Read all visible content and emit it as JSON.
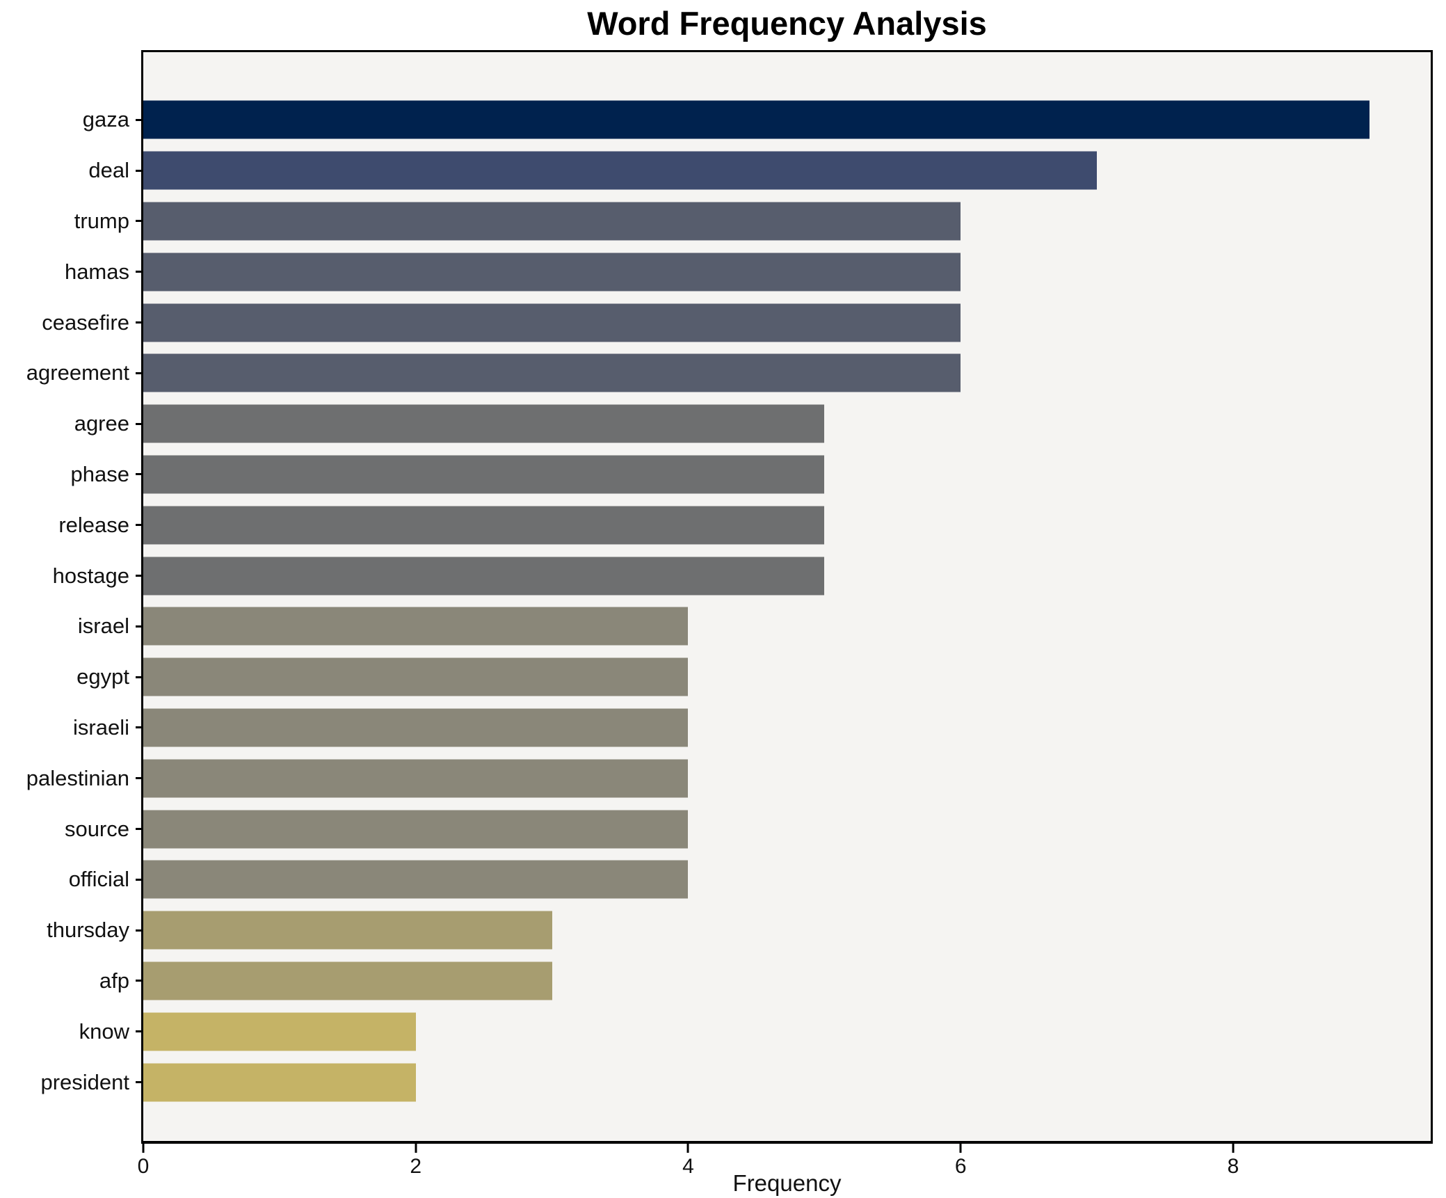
{
  "title": "Word Frequency Analysis",
  "chart_data": {
    "type": "bar",
    "orientation": "horizontal",
    "title": "Word Frequency Analysis",
    "xlabel": "Frequency",
    "ylabel": "",
    "categories": [
      "gaza",
      "deal",
      "trump",
      "hamas",
      "ceasefire",
      "agreement",
      "agree",
      "phase",
      "release",
      "hostage",
      "israel",
      "egypt",
      "israeli",
      "palestinian",
      "source",
      "official",
      "thursday",
      "afp",
      "know",
      "president"
    ],
    "values": [
      9,
      7,
      6,
      6,
      6,
      6,
      5,
      5,
      5,
      5,
      4,
      4,
      4,
      4,
      4,
      4,
      3,
      3,
      2,
      2
    ],
    "bar_colors": [
      "#00224e",
      "#3e4b6e",
      "#575d6d",
      "#575d6d",
      "#575d6d",
      "#575d6d",
      "#6e6f70",
      "#6e6f70",
      "#6e6f70",
      "#6e6f70",
      "#8a8779",
      "#8a8779",
      "#8a8779",
      "#8a8779",
      "#8a8779",
      "#8a8779",
      "#a79d70",
      "#a79d70",
      "#c5b366",
      "#c5b366"
    ],
    "xticks": [
      0,
      2,
      4,
      6,
      8
    ],
    "xlim": [
      0,
      9.45
    ],
    "grid": false,
    "legend": "none",
    "plot_background": "#f5f4f2",
    "figure_background": "#ffffff",
    "spine_color": "#000000"
  }
}
